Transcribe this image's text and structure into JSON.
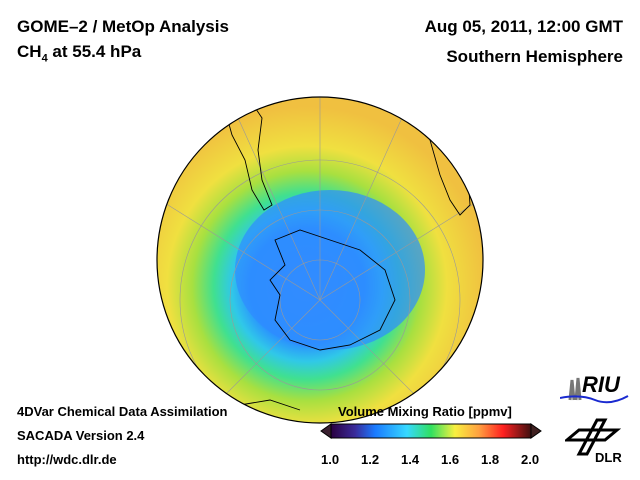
{
  "header": {
    "title": "GOME–2 / MetOp Analysis",
    "species": "CH",
    "species_sub": "4",
    "level": " at 55.4 hPa",
    "datetime": "Aug 05, 2011, 12:00 GMT",
    "region": "Southern Hemisphere"
  },
  "footer": {
    "line1": "4DVar Chemical Data Assimilation",
    "line2": "SACADA Version 2.4",
    "line3": "http://wdc.dlr.de"
  },
  "colorbar": {
    "title": "Volume Mixing Ratio [ppmv]",
    "ticks": [
      "1.0",
      "1.2",
      "1.4",
      "1.6",
      "1.8",
      "2.0"
    ],
    "range": [
      1.0,
      2.0
    ],
    "colors": [
      "#2a0040",
      "#3a2a9a",
      "#1a7aff",
      "#36c8ff",
      "#30e060",
      "#f8f040",
      "#ffa040",
      "#ff2020",
      "#c01010",
      "#401010"
    ]
  },
  "logos": {
    "riu": "RIU",
    "dlr": "DLR"
  }
}
